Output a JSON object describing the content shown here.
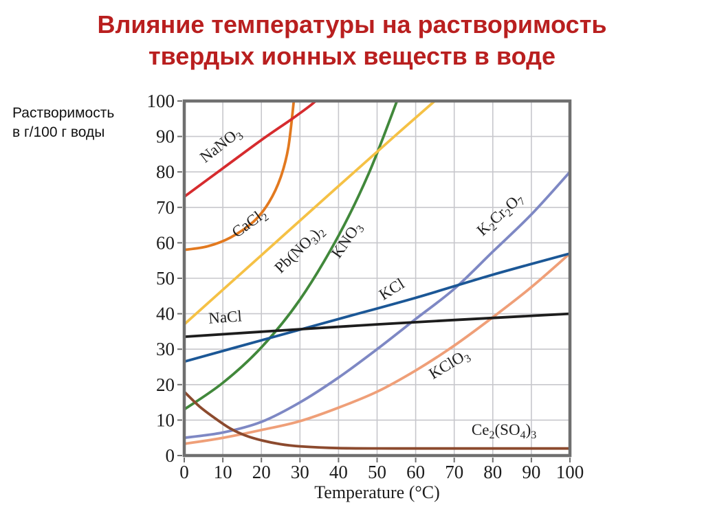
{
  "slide": {
    "title_line1": "Влияние температуры на растворимость",
    "title_line2": "твердых ионных веществ в воде",
    "title_color": "#b91f1f",
    "background_color": "#ffffff"
  },
  "labels": {
    "y_unit": "Растворимость\nв г/100 г воды"
  },
  "chart_data": {
    "type": "line",
    "title": "Влияние температуры на растворимость твердых ионных веществ в воде",
    "xlabel": "Temperature (°C)",
    "ylabel": "Растворимость в г/100 г воды",
    "xlim": [
      0,
      100
    ],
    "ylim": [
      0,
      100
    ],
    "x_ticks": [
      0,
      10,
      20,
      30,
      40,
      50,
      60,
      70,
      80,
      90,
      100
    ],
    "y_ticks": [
      0,
      10,
      20,
      30,
      40,
      50,
      60,
      70,
      80,
      90,
      100
    ],
    "grid": true,
    "grid_color": "#c7c7cc",
    "frame_color": "#6f6f6f",
    "tick_label_color": "#1d1d1d",
    "curve_label_color": "#1f1f1f",
    "legend": "inline-curve-labels",
    "series": [
      {
        "name": "KClO3",
        "color": "#ef9f78",
        "label_pos": [
          69.3,
          24.6
        ],
        "label_rot": -31,
        "points": [
          [
            0,
            3.3
          ],
          [
            10,
            5
          ],
          [
            20,
            7.2
          ],
          [
            30,
            9.7
          ],
          [
            40,
            13.5
          ],
          [
            50,
            18
          ],
          [
            60,
            24
          ],
          [
            70,
            31
          ],
          [
            80,
            39
          ],
          [
            90,
            47.5
          ],
          [
            100,
            57
          ]
        ]
      },
      {
        "name": "K2Cr2O7",
        "color": "#7e88c4",
        "label_pos": [
          82.7,
          67.0
        ],
        "label_rot": -42,
        "points": [
          [
            0,
            5
          ],
          [
            10,
            6.5
          ],
          [
            20,
            9.5
          ],
          [
            30,
            15
          ],
          [
            40,
            22
          ],
          [
            50,
            30
          ],
          [
            60,
            38.5
          ],
          [
            70,
            47
          ],
          [
            80,
            57.5
          ],
          [
            90,
            68
          ],
          [
            100,
            80
          ]
        ]
      },
      {
        "name": "KNO3",
        "color": "#41883b",
        "label_pos": [
          43.1,
          60.0
        ],
        "label_rot": -55,
        "points": [
          [
            0,
            13
          ],
          [
            10,
            20.5
          ],
          [
            20,
            30.5
          ],
          [
            30,
            44
          ],
          [
            40,
            62
          ],
          [
            48,
            80
          ],
          [
            55.5,
            101
          ]
        ]
      },
      {
        "name": "Ce2(SO4)3",
        "color": "#8c4a2e",
        "label_pos": [
          82.9,
          5.8
        ],
        "label_rot": 0,
        "points": [
          [
            0,
            18
          ],
          [
            4,
            13.8
          ],
          [
            8,
            10.5
          ],
          [
            12,
            7.6
          ],
          [
            16,
            5.6
          ],
          [
            20,
            4.3
          ],
          [
            25,
            3.2
          ],
          [
            30,
            2.6
          ],
          [
            40,
            2.1
          ],
          [
            55,
            2
          ],
          [
            75,
            2
          ],
          [
            100,
            2
          ]
        ]
      },
      {
        "name": "Pb(NO3)2",
        "color": "#f5c145",
        "label_pos": [
          30.7,
          57.2
        ],
        "label_rot": -44,
        "points": [
          [
            0,
            37
          ],
          [
            20,
            56.5
          ],
          [
            40,
            76
          ],
          [
            55,
            90.5
          ],
          [
            66,
            101
          ]
        ]
      },
      {
        "name": "CaCl2",
        "color": "#e2791f",
        "label_pos": [
          17.6,
          64.5
        ],
        "label_rot": -36,
        "points": [
          [
            0,
            58
          ],
          [
            6,
            59
          ],
          [
            12,
            61.5
          ],
          [
            18,
            66
          ],
          [
            22,
            71.5
          ],
          [
            25,
            78.5
          ],
          [
            27,
            87
          ],
          [
            28.5,
            101
          ]
        ]
      },
      {
        "name": "NaNO3",
        "color": "#d62b2e",
        "label_pos": [
          10.2,
          86.5
        ],
        "label_rot": -38,
        "points": [
          [
            0,
            73
          ],
          [
            10,
            81
          ],
          [
            20,
            89
          ],
          [
            28,
            95
          ],
          [
            33,
            99
          ],
          [
            36,
            102
          ]
        ]
      },
      {
        "name": "KCl",
        "color": "#1b5796",
        "label_pos": [
          54.5,
          45.7
        ],
        "label_rot": -32,
        "points": [
          [
            0,
            26.5
          ],
          [
            20,
            32.5
          ],
          [
            40,
            38.5
          ],
          [
            60,
            44.5
          ],
          [
            80,
            51
          ],
          [
            100,
            57
          ]
        ]
      },
      {
        "name": "NaCl",
        "color": "#1d1d1d",
        "label_pos": [
          10.7,
          37.6
        ],
        "label_rot": -4,
        "points": [
          [
            0,
            33.5
          ],
          [
            50,
            37
          ],
          [
            100,
            40
          ]
        ]
      }
    ]
  }
}
